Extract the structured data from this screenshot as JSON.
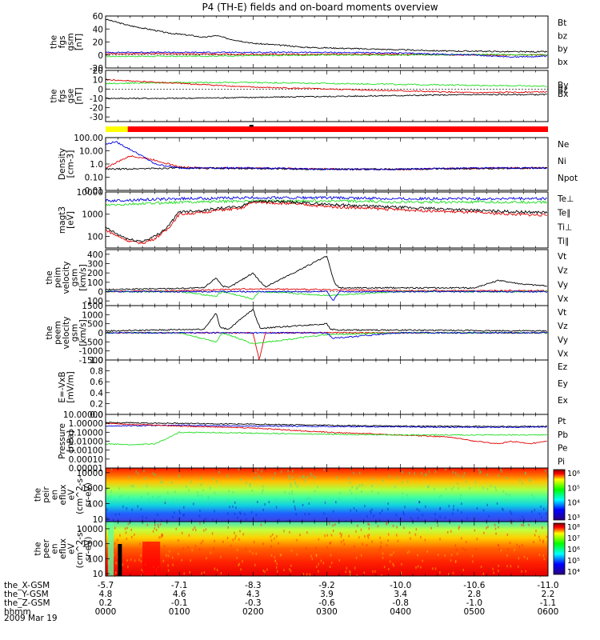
{
  "title": "P4 (TH-E) fields and on-board moments overview",
  "date": "2009 Mar 19",
  "colors": {
    "black": "#000000",
    "red": "#e00000",
    "green": "#22dd22",
    "blue": "#0000dd"
  },
  "chart_data": [
    {
      "type": "line",
      "id": "fgs_gsm",
      "ylabel": [
        "the",
        "fgs",
        "gsm",
        "[nT]"
      ],
      "ylim": [
        -20,
        60
      ],
      "yticks": [
        -20,
        0,
        20,
        40,
        60
      ],
      "legend": [
        {
          "name": "Bt",
          "color": "#000000"
        },
        {
          "name": "bz",
          "color": "#e00000"
        },
        {
          "name": "by",
          "color": "#22dd22"
        },
        {
          "name": "bx",
          "color": "#0000dd"
        }
      ],
      "series": [
        {
          "name": "Bt",
          "color": "#000000",
          "x": [
            0,
            10,
            20,
            40,
            50,
            60,
            70,
            80,
            90,
            100,
            120,
            150,
            160,
            180,
            200,
            220,
            240,
            260,
            280,
            300,
            330,
            360
          ],
          "y": [
            55,
            50,
            45,
            38,
            34,
            32,
            30,
            27,
            30,
            25,
            18,
            14,
            12,
            11,
            10,
            9,
            8,
            7,
            6,
            6,
            5,
            5
          ]
        },
        {
          "name": "bz",
          "color": "#e00000",
          "x": [
            0,
            60,
            120,
            180,
            240,
            300,
            360
          ],
          "y": [
            2,
            2,
            1,
            1,
            1,
            0,
            0
          ]
        },
        {
          "name": "by",
          "color": "#22dd22",
          "x": [
            0,
            60,
            120,
            180,
            240,
            300,
            360
          ],
          "y": [
            -2,
            -2,
            -1,
            0,
            0,
            1,
            0
          ]
        },
        {
          "name": "bx",
          "color": "#0000dd",
          "x": [
            0,
            60,
            120,
            180,
            240,
            300,
            330,
            360
          ],
          "y": [
            4,
            4,
            4,
            4,
            3,
            0,
            -3,
            -2
          ]
        }
      ]
    },
    {
      "type": "line",
      "id": "fgs_gse",
      "ylabel": [
        "the",
        "fgs",
        "gse",
        "[nT]"
      ],
      "ylim": [
        -35,
        20
      ],
      "yticks": [
        -30,
        -20,
        -10,
        0,
        10,
        20
      ],
      "legend": [
        {
          "name": "By",
          "color": "#22dd22"
        },
        {
          "name": "Bz",
          "color": "#e00000"
        },
        {
          "name": "Bx",
          "color": "#000000"
        }
      ],
      "series": [
        {
          "name": "By",
          "color": "#22dd22",
          "x": [
            0,
            60,
            120,
            180,
            240,
            300,
            360
          ],
          "y": [
            6,
            7,
            7,
            6,
            5,
            4,
            3
          ]
        },
        {
          "name": "Bz",
          "color": "#e00000",
          "x": [
            0,
            60,
            120,
            180,
            240,
            300,
            360
          ],
          "y": [
            10,
            6,
            2,
            0,
            -2,
            -4,
            -3
          ]
        },
        {
          "name": "Bx",
          "color": "#000000",
          "x": [
            0,
            60,
            120,
            180,
            240,
            300,
            360
          ],
          "y": [
            -10,
            -10,
            -9,
            -8,
            -7,
            -6,
            -6
          ]
        }
      ]
    },
    {
      "type": "line",
      "id": "density",
      "ylabel": [
        "Density",
        "[cm-3]"
      ],
      "yscale": "log",
      "ylim": [
        0.01,
        100
      ],
      "ytick_labels": [
        "0.01",
        "0.10",
        "1.0",
        "10.00",
        "100.00"
      ],
      "legend": [
        {
          "name": "Ne",
          "color": "#e00000"
        },
        {
          "name": "Ni",
          "color": "#000000"
        },
        {
          "name": "Npot",
          "color": "#0000dd"
        }
      ],
      "series": [
        {
          "name": "Ne",
          "color": "#e00000",
          "x": [
            0,
            10,
            20,
            30,
            40,
            60,
            80,
            120,
            160,
            200,
            240,
            280,
            320,
            360
          ],
          "y": [
            0.5,
            1.5,
            4,
            3,
            2,
            0.6,
            0.5,
            0.5,
            0.45,
            0.4,
            0.4,
            0.45,
            0.5,
            0.5
          ]
        },
        {
          "name": "Ni",
          "color": "#000000",
          "x": [
            0,
            60,
            120,
            180,
            240,
            300,
            360
          ],
          "y": [
            0.4,
            0.5,
            0.45,
            0.4,
            0.4,
            0.45,
            0.5
          ]
        },
        {
          "name": "Npot",
          "color": "#0000dd",
          "x": [
            0,
            8,
            16,
            24,
            32,
            40,
            60,
            120,
            180,
            240,
            300,
            360
          ],
          "y": [
            30,
            50,
            20,
            8,
            3,
            1,
            0.5,
            0.5,
            0.4,
            0.4,
            0.5,
            0.5
          ]
        }
      ]
    },
    {
      "type": "line",
      "id": "temperature",
      "ylabel": [
        "magt3",
        "[eV]"
      ],
      "yscale": "log",
      "ylim": [
        30,
        10000
      ],
      "ytick_labels": [
        "100",
        "1000",
        "10000"
      ],
      "legend": [
        {
          "name": "Te⊥",
          "color": "#e00000"
        },
        {
          "name": "Te∥",
          "color": "#000000"
        },
        {
          "name": "Ti⊥",
          "color": "#0000dd"
        },
        {
          "name": "Ti∥",
          "color": "#22dd22"
        }
      ],
      "series": [
        {
          "name": "Ti⊥",
          "color": "#0000dd",
          "x": [
            0,
            60,
            120,
            180,
            240,
            300,
            360
          ],
          "y": [
            4000,
            5000,
            5500,
            5500,
            5000,
            5000,
            5000
          ]
        },
        {
          "name": "Ti∥",
          "color": "#22dd22",
          "x": [
            0,
            60,
            120,
            180,
            240,
            300,
            360
          ],
          "y": [
            2500,
            3500,
            4000,
            4000,
            3500,
            3500,
            3500
          ]
        },
        {
          "name": "Te⊥",
          "color": "#e00000",
          "x": [
            0,
            10,
            20,
            30,
            40,
            50,
            60,
            80,
            90,
            110,
            120,
            150,
            170,
            180,
            200,
            240,
            280,
            300,
            330,
            360
          ],
          "y": [
            200,
            100,
            60,
            50,
            80,
            200,
            1000,
            1200,
            1500,
            1800,
            3500,
            3000,
            2500,
            2200,
            2000,
            1600,
            1300,
            1200,
            1000,
            900
          ]
        },
        {
          "name": "Te∥",
          "color": "#000000",
          "x": [
            0,
            10,
            20,
            30,
            40,
            50,
            60,
            80,
            90,
            110,
            120,
            150,
            170,
            180,
            200,
            240,
            280,
            300,
            330,
            360
          ],
          "y": [
            250,
            120,
            70,
            60,
            100,
            250,
            1300,
            1500,
            1800,
            2200,
            4000,
            3500,
            3000,
            2800,
            2500,
            2000,
            1700,
            1500,
            1300,
            1200
          ]
        }
      ]
    },
    {
      "type": "line",
      "id": "peim_velocity",
      "ylabel": [
        "the",
        "peim",
        "velocity",
        "gsm",
        "[km/s]"
      ],
      "ylim": [
        -150,
        450
      ],
      "yticks": [
        -100,
        0,
        100,
        200,
        300,
        400
      ],
      "legend": [
        {
          "name": "Vt",
          "color": "#000000"
        },
        {
          "name": "Vz",
          "color": "#e00000"
        },
        {
          "name": "Vy",
          "color": "#22dd22"
        },
        {
          "name": "Vx",
          "color": "#0000dd"
        }
      ],
      "series": [
        {
          "name": "Vt",
          "color": "#000000",
          "x": [
            0,
            40,
            80,
            90,
            95,
            100,
            120,
            125,
            130,
            180,
            186,
            190,
            240,
            300,
            320,
            340,
            360
          ],
          "y": [
            20,
            30,
            40,
            150,
            60,
            40,
            200,
            120,
            50,
            380,
            100,
            40,
            40,
            40,
            120,
            80,
            60
          ]
        },
        {
          "name": "Vz",
          "color": "#e00000",
          "x": [
            0,
            60,
            120,
            180,
            240,
            300,
            360
          ],
          "y": [
            0,
            10,
            30,
            20,
            10,
            10,
            10
          ]
        },
        {
          "name": "Vy",
          "color": "#22dd22",
          "x": [
            0,
            60,
            90,
            95,
            120,
            125,
            180,
            240,
            300,
            360
          ],
          "y": [
            0,
            0,
            -50,
            0,
            -80,
            0,
            -40,
            0,
            0,
            0
          ]
        },
        {
          "name": "Vx",
          "color": "#0000dd",
          "x": [
            0,
            60,
            120,
            180,
            185,
            190,
            240,
            300,
            360
          ],
          "y": [
            0,
            0,
            0,
            0,
            -100,
            0,
            0,
            0,
            0
          ]
        }
      ]
    },
    {
      "type": "line",
      "id": "peem_velocity",
      "ylabel": [
        "the",
        "peem",
        "velocity",
        "gsm",
        "[km/s]"
      ],
      "ylim": [
        -1500,
        1500
      ],
      "yticks": [
        -1500,
        -1000,
        -500,
        0,
        500,
        1000,
        1500
      ],
      "legend": [
        {
          "name": "Vt",
          "color": "#000000"
        },
        {
          "name": "Vz",
          "color": "#e00000"
        },
        {
          "name": "Vy",
          "color": "#22dd22"
        },
        {
          "name": "Vx",
          "color": "#0000dd"
        }
      ],
      "series": [
        {
          "name": "Vt",
          "color": "#000000",
          "x": [
            0,
            40,
            80,
            90,
            93,
            100,
            120,
            123,
            126,
            180,
            183,
            190,
            240,
            300,
            360
          ],
          "y": [
            100,
            150,
            200,
            1100,
            300,
            200,
            1300,
            700,
            250,
            500,
            200,
            150,
            150,
            120,
            100
          ]
        },
        {
          "name": "Vz",
          "color": "#e00000",
          "x": [
            0,
            60,
            120,
            125,
            130,
            180,
            240,
            300,
            360
          ],
          "y": [
            0,
            0,
            0,
            -1500,
            0,
            0,
            0,
            0,
            0
          ]
        },
        {
          "name": "Vy",
          "color": "#22dd22",
          "x": [
            0,
            60,
            90,
            95,
            120,
            180,
            240,
            300,
            360
          ],
          "y": [
            0,
            0,
            -500,
            0,
            -600,
            -100,
            0,
            0,
            0
          ]
        },
        {
          "name": "Vx",
          "color": "#0000dd",
          "x": [
            0,
            60,
            180,
            185,
            240,
            300,
            360
          ],
          "y": [
            0,
            0,
            0,
            -300,
            0,
            0,
            0
          ]
        }
      ]
    },
    {
      "type": "line",
      "id": "efield",
      "ylabel": [
        "E=-VxB",
        "[mV/m]"
      ],
      "ylim": [
        0,
        1
      ],
      "ytick_labels": [
        "0.0",
        "0.2",
        "0.4",
        "0.6",
        "0.8",
        "1.0"
      ],
      "legend": [
        {
          "name": "Ez",
          "color": "#e00000"
        },
        {
          "name": "Ey",
          "color": "#22dd22"
        },
        {
          "name": "Ex",
          "color": "#0000dd"
        }
      ],
      "series": []
    },
    {
      "type": "line",
      "id": "pressure",
      "ylabel": [
        "Pressure",
        "[nPa]"
      ],
      "yscale": "log",
      "ylim": [
        1e-05,
        10
      ],
      "ytick_labels": [
        "0.00001",
        "0.00010",
        "0.00100",
        "0.01000",
        "0.10000",
        "1.00000",
        "10.00000"
      ],
      "legend": [
        {
          "name": "Pt",
          "color": "#000000"
        },
        {
          "name": "Pb",
          "color": "#e00000"
        },
        {
          "name": "Pe",
          "color": "#22dd22"
        },
        {
          "name": "Pi",
          "color": "#0000dd"
        }
      ],
      "series": [
        {
          "name": "Pt",
          "color": "#000000",
          "x": [
            0,
            60,
            120,
            180,
            240,
            300,
            360
          ],
          "y": [
            1.2,
            1.0,
            0.8,
            0.6,
            0.5,
            0.45,
            0.45
          ]
        },
        {
          "name": "Pi",
          "color": "#0000dd",
          "x": [
            0,
            60,
            120,
            180,
            240,
            300,
            360
          ],
          "y": [
            0.5,
            0.6,
            0.5,
            0.45,
            0.4,
            0.35,
            0.4
          ]
        },
        {
          "name": "Pb",
          "color": "#e00000",
          "x": [
            0,
            60,
            120,
            180,
            240,
            280,
            300,
            320,
            330,
            345,
            360
          ],
          "y": [
            1.0,
            0.5,
            0.3,
            0.1,
            0.05,
            0.03,
            0.01,
            0.005,
            0.01,
            0.005,
            0.01
          ]
        },
        {
          "name": "Pe",
          "color": "#22dd22",
          "x": [
            0,
            20,
            40,
            50,
            60,
            120,
            180,
            240,
            300,
            360
          ],
          "y": [
            0.005,
            0.004,
            0.005,
            0.02,
            0.1,
            0.08,
            0.06,
            0.05,
            0.05,
            0.05
          ]
        }
      ]
    },
    {
      "type": "heatmap",
      "id": "peir_eflux",
      "ylabel": [
        "the",
        "peir",
        "en",
        "eflux",
        "eV",
        "(cm^2-s-",
        "sr-eV)"
      ],
      "yscale": "log",
      "ylim": [
        7,
        20000
      ],
      "ytick_labels": [
        "10",
        "100",
        "1000",
        "10000"
      ],
      "colorbar_labels": [
        "10³",
        "10⁴",
        "10⁵",
        "10⁶"
      ]
    },
    {
      "type": "heatmap",
      "id": "peer_eflux",
      "ylabel": [
        "the",
        "peer",
        "en",
        "eflux",
        "eV",
        "(cm^2-s-",
        "sr-eV)"
      ],
      "yscale": "log",
      "ylim": [
        7,
        30000
      ],
      "ytick_labels": [
        "10",
        "100",
        "1000",
        "10000"
      ],
      "colorbar_labels": [
        "10⁴",
        "10⁵",
        "10⁶",
        "10⁷",
        "10⁸"
      ]
    }
  ],
  "xaxis": {
    "row_labels": [
      "the_X-GSM",
      "the_Y-GSM",
      "the_Z-GSM",
      "hhmm"
    ],
    "columns": [
      {
        "x": 0,
        "values": [
          "-5.7",
          "4.8",
          "0.2",
          "0000"
        ]
      },
      {
        "x": 60,
        "values": [
          "-7.1",
          "4.6",
          "-0.1",
          "0100"
        ]
      },
      {
        "x": 120,
        "values": [
          "-8.3",
          "4.3",
          "-0.3",
          "0200"
        ]
      },
      {
        "x": 180,
        "values": [
          "-9.2",
          "3.9",
          "-0.6",
          "0300"
        ]
      },
      {
        "x": 240,
        "values": [
          "-10.0",
          "3.4",
          "-0.8",
          "0400"
        ]
      },
      {
        "x": 300,
        "values": [
          "-10.6",
          "2.8",
          "-1.0",
          "0500"
        ]
      },
      {
        "x": 360,
        "values": [
          "-11.0",
          "2.2",
          "-1.1",
          "0600"
        ]
      }
    ]
  },
  "mode_bar": {
    "yellow_until_minutes": 18
  }
}
